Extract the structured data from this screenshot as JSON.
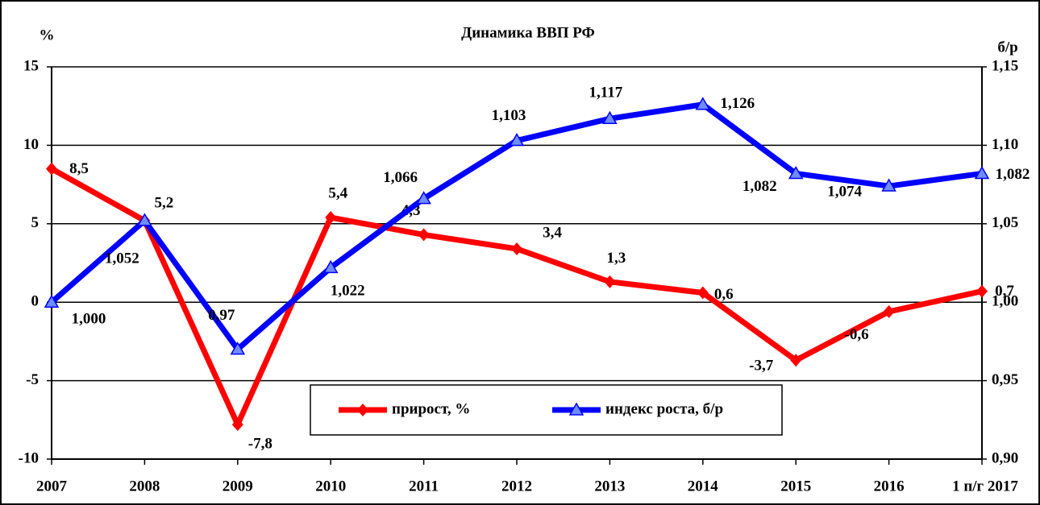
{
  "chart_data": {
    "type": "line",
    "title": "Динамика ВВП РФ",
    "y_label": "%",
    "y2_label": "б/р",
    "categories": [
      "2007",
      "2008",
      "2009",
      "2010",
      "2011",
      "2012",
      "2013",
      "2014",
      "2015",
      "2016",
      "1 п/г 2017"
    ],
    "series": [
      {
        "name": "прирост, %",
        "color": "#ff0000",
        "values": [
          8.5,
          5.2,
          -7.8,
          5.4,
          4.3,
          3.4,
          1.3,
          0.6,
          -3.7,
          -0.6,
          0.7
        ],
        "value_labels": [
          "8,5",
          "5,2",
          "-7,8",
          "5,4",
          "4,3",
          "3,4",
          "1,3",
          "0,6",
          "-3,7",
          "-0,6",
          "0,7"
        ]
      },
      {
        "name": "индекс роста, б/р",
        "color": "#0000ff",
        "axis": "y2",
        "values": [
          1.0,
          1.052,
          0.97,
          1.022,
          1.066,
          1.103,
          1.117,
          1.126,
          1.082,
          1.074,
          1.082
        ],
        "value_labels": [
          "1,000",
          "1,052",
          "0,97",
          "1,022",
          "1,066",
          "1,103",
          "1,117",
          "1,126",
          "1,082",
          "1,074",
          "1,082"
        ]
      }
    ],
    "ylim": [
      -10,
      15
    ],
    "yticks": [
      -10,
      -5,
      0,
      5,
      10,
      15
    ],
    "y2lim": [
      0.9,
      1.15
    ],
    "y2ticks": [
      {
        "value": 0.9,
        "label": "0,90"
      },
      {
        "value": 0.95,
        "label": "0,95"
      },
      {
        "value": 1.0,
        "label": "1,00"
      },
      {
        "value": 1.05,
        "label": "1,05"
      },
      {
        "value": 1.1,
        "label": "1,10"
      },
      {
        "value": 1.15,
        "label": "1,15"
      }
    ],
    "grid": true,
    "legend": "bottom"
  }
}
